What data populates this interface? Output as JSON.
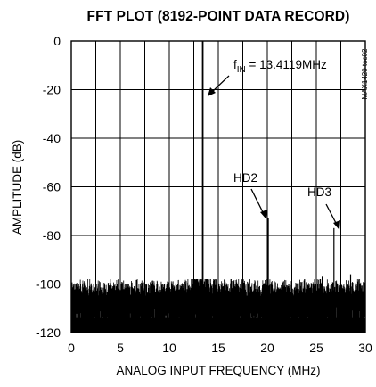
{
  "chart_data": {
    "type": "line",
    "title": "FFT PLOT (8192-POINT DATA RECORD)",
    "xlabel": "ANALOG INPUT FREQUENCY (MHz)",
    "ylabel": "AMPLITUDE (dB)",
    "xlim": [
      0,
      30
    ],
    "ylim": [
      -120,
      0
    ],
    "xticks": [
      0,
      5,
      10,
      15,
      20,
      25,
      30
    ],
    "yticks": [
      0,
      -20,
      -40,
      -60,
      -80,
      -100,
      -120
    ],
    "xtick_labels": [
      "0",
      "5",
      "10",
      "15",
      "20",
      "25",
      "30"
    ],
    "ytick_labels": [
      "0",
      "-20",
      "-40",
      "-60",
      "-80",
      "-100",
      "-120"
    ],
    "grid": true,
    "figure_code": "MAX1420 toc02",
    "noise_floor_db": [
      -120,
      -102
    ],
    "peaks": [
      {
        "x": 13.4119,
        "y": 0
      },
      {
        "x": 20.1,
        "y": -73
      },
      {
        "x": 26.8,
        "y": -77
      },
      {
        "x": 18.2,
        "y": -98
      },
      {
        "x": 23.8,
        "y": -98
      },
      {
        "x": 25.6,
        "y": -97
      },
      {
        "x": 28.5,
        "y": -96
      }
    ],
    "annotations": [
      {
        "id": "fin",
        "main": "f",
        "sub": "IN",
        "rest": " = 13.4119MHz",
        "x": 13.4119,
        "y": 0
      },
      {
        "id": "hd2",
        "text": "HD2",
        "x": 20.1,
        "y": -73
      },
      {
        "id": "hd3",
        "text": "HD3",
        "x": 26.8,
        "y": -77
      }
    ]
  }
}
